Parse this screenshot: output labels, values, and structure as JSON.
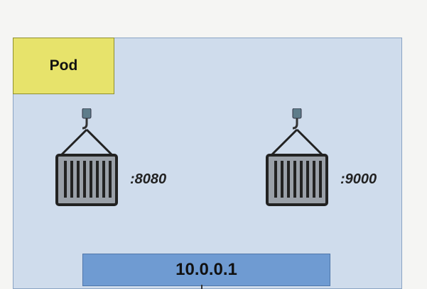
{
  "diagram": {
    "pod_label": "Pod",
    "containers": [
      {
        "port": ":8080",
        "icon": "shipping-container-icon"
      },
      {
        "port": ":9000",
        "icon": "shipping-container-icon"
      }
    ],
    "ip_address": "10.0.0.1"
  },
  "colors": {
    "pod_background": "#cfdcec",
    "pod_label_background": "#e7e36b",
    "ip_background": "#6f9bd2",
    "container_fill": "#9aa0a8",
    "hook_fill": "#5e7c8a"
  }
}
